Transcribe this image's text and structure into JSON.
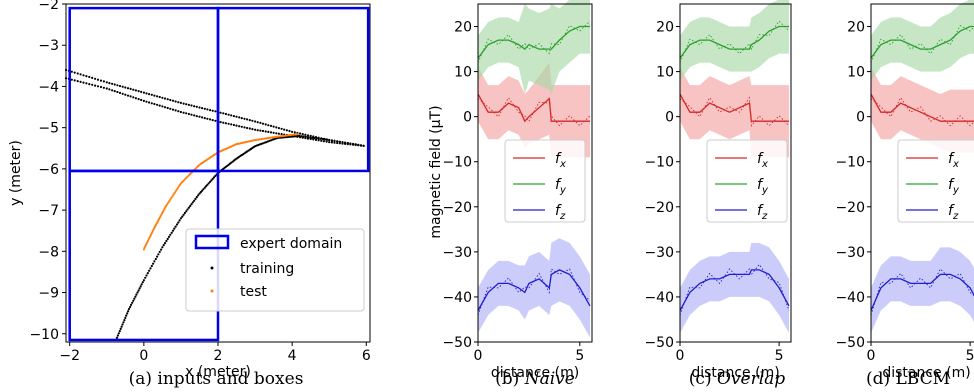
{
  "chart_data": [
    {
      "type": "scatter",
      "xlabel": "x (meter)",
      "ylabel": "y (meter)",
      "xlim": [
        -2.1,
        6.1
      ],
      "ylim": [
        -10.2,
        -2.0
      ],
      "xticks": [
        -2,
        0,
        2,
        4,
        6
      ],
      "yticks": [
        -10,
        -9,
        -8,
        -7,
        -6,
        -5,
        -4,
        -3,
        -2
      ],
      "boxes": [
        {
          "x0": -2.0,
          "x1": 2.0,
          "y0": -6.05,
          "y1": -2.1
        },
        {
          "x0": 2.0,
          "x1": 6.05,
          "y0": -6.05,
          "y1": -2.1
        },
        {
          "x0": -2.0,
          "x1": 2.0,
          "y0": -10.15,
          "y1": -6.05
        }
      ],
      "series": [
        {
          "name": "training",
          "color": "#000000",
          "kind": "scatter",
          "points": [
            [
              -2.1,
              -3.6
            ],
            [
              -1,
              -3.9
            ],
            [
              0,
              -4.15
            ],
            [
              1,
              -4.4
            ],
            [
              2,
              -4.62
            ],
            [
              3,
              -4.85
            ],
            [
              4,
              -5.1
            ],
            [
              5,
              -5.3
            ],
            [
              6,
              -5.45
            ]
          ]
        },
        {
          "color": "#000000",
          "kind": "scatter",
          "points": [
            [
              -2.1,
              -3.8
            ],
            [
              -1,
              -4.05
            ],
            [
              0,
              -4.35
            ],
            [
              1,
              -4.62
            ],
            [
              2,
              -4.85
            ],
            [
              3,
              -5.05
            ],
            [
              4,
              -5.2
            ],
            [
              5,
              -5.35
            ],
            [
              6,
              -5.45
            ]
          ]
        },
        {
          "color": "#000000",
          "kind": "scatter",
          "points": [
            [
              -0.75,
              -10.15
            ],
            [
              -0.4,
              -9.4
            ],
            [
              0,
              -8.7
            ],
            [
              0.5,
              -7.9
            ],
            [
              1,
              -7.2
            ],
            [
              1.5,
              -6.6
            ],
            [
              2,
              -6.1
            ],
            [
              2.5,
              -5.75
            ],
            [
              3,
              -5.45
            ],
            [
              3.6,
              -5.25
            ],
            [
              4.2,
              -5.2
            ],
            [
              5,
              -5.3
            ],
            [
              6,
              -5.45
            ]
          ]
        },
        {
          "name": "test",
          "color": "#ff7f0e",
          "kind": "scatter",
          "points": [
            [
              0,
              -7.95
            ],
            [
              0.3,
              -7.4
            ],
            [
              0.6,
              -6.9
            ],
            [
              1,
              -6.35
            ],
            [
              1.5,
              -5.9
            ],
            [
              2,
              -5.6
            ],
            [
              2.5,
              -5.4
            ],
            [
              3,
              -5.3
            ],
            [
              3.6,
              -5.22
            ],
            [
              4.2,
              -5.15
            ]
          ]
        }
      ],
      "legend": {
        "position": "bottom-right",
        "entries": [
          "expert domain",
          "training",
          "test"
        ]
      },
      "caption": "(a) inputs and boxes"
    },
    {
      "type": "line",
      "xlabel": "distance (m)",
      "ylabel": "magnetic field (μT)",
      "xlim": [
        0,
        5.6
      ],
      "ylim": [
        -50,
        25
      ],
      "xticks": [
        0,
        5
      ],
      "yticks": [
        -50,
        -40,
        -30,
        -20,
        -10,
        0,
        10,
        20
      ],
      "legend": {
        "position": "center",
        "entries": [
          "f_x",
          "f_y",
          "f_z"
        ]
      },
      "caption_prefix": "(b) ",
      "caption_emph": "Naive",
      "series": [
        {
          "name": "f_x",
          "color": "#d62728",
          "fill": "#f4a3a3",
          "x": [
            0,
            0.5,
            1,
            1.5,
            2,
            2.3,
            2.5,
            3,
            3.5,
            3.6,
            4,
            4.5,
            5,
            5.5
          ],
          "values": [
            5,
            1,
            1,
            3,
            2,
            -1,
            0,
            2,
            4,
            -1,
            -1,
            -1,
            -1,
            -1
          ],
          "band": [
            6,
            6,
            6,
            6,
            6,
            6,
            6,
            7,
            8,
            8,
            8,
            8,
            8,
            8
          ]
        },
        {
          "name": "f_y",
          "color": "#2ca02c",
          "fill": "#a7d8a7",
          "x": [
            0,
            0.5,
            1,
            1.5,
            2,
            2.3,
            2.5,
            3,
            3.5,
            3.6,
            4,
            4.5,
            5,
            5.5
          ],
          "values": [
            13,
            16,
            17,
            17,
            16,
            15,
            16,
            15,
            15,
            15,
            17,
            19,
            20,
            20
          ],
          "band": [
            5,
            5,
            5,
            5,
            5,
            10,
            8,
            8,
            9,
            10,
            7,
            7,
            6,
            6
          ]
        },
        {
          "name": "f_z",
          "color": "#1f1fd0",
          "fill": "#b0b0f8",
          "x": [
            0,
            0.5,
            1,
            1.5,
            2,
            2.3,
            2.5,
            3,
            3.5,
            3.6,
            4,
            4.5,
            5,
            5.5
          ],
          "values": [
            -43,
            -39,
            -37,
            -37,
            -38,
            -39,
            -37,
            -36,
            -38,
            -35,
            -34,
            -35,
            -38,
            -42
          ],
          "band": [
            5,
            5,
            5,
            5,
            5,
            6,
            6,
            6,
            6,
            7,
            7,
            7,
            7,
            7
          ]
        }
      ]
    },
    {
      "type": "line",
      "xlim": [
        0,
        5.6
      ],
      "ylim": [
        -50,
        25
      ],
      "xlabel": "distance (m)",
      "xticks": [
        0,
        5
      ],
      "yticks": [
        -50,
        -40,
        -30,
        -20,
        -10,
        0,
        10,
        20
      ],
      "legend": {
        "position": "center",
        "entries": [
          "f_x",
          "f_y",
          "f_z"
        ]
      },
      "caption_prefix": "(c) ",
      "caption_emph": "Overlap",
      "series": [
        {
          "name": "f_x",
          "color": "#d62728",
          "fill": "#f4a3a3",
          "x": [
            0,
            0.5,
            1,
            1.5,
            2,
            2.5,
            3,
            3.5,
            3.6,
            4,
            4.5,
            5,
            5.5
          ],
          "values": [
            5,
            1,
            1,
            3,
            2,
            1,
            2,
            3,
            -1,
            -1,
            -1,
            -1,
            -1
          ],
          "band": [
            6,
            6,
            6,
            6,
            6,
            6,
            6,
            6,
            8,
            8,
            8,
            8,
            8
          ]
        },
        {
          "name": "f_y",
          "color": "#2ca02c",
          "fill": "#a7d8a7",
          "x": [
            0,
            0.5,
            1,
            1.5,
            2,
            2.5,
            3,
            3.5,
            3.6,
            4,
            4.5,
            5,
            5.5
          ],
          "values": [
            13,
            16,
            17,
            17,
            16,
            15,
            15,
            15,
            16,
            17,
            19,
            20,
            20
          ],
          "band": [
            5,
            5,
            5,
            5,
            5,
            5,
            5,
            5,
            6,
            6,
            6,
            6,
            6
          ]
        },
        {
          "name": "f_z",
          "color": "#1f1fd0",
          "fill": "#b0b0f8",
          "x": [
            0,
            0.5,
            1,
            1.5,
            2,
            2.5,
            3,
            3.5,
            3.6,
            4,
            4.5,
            5,
            5.5
          ],
          "values": [
            -43,
            -39,
            -37,
            -36,
            -36,
            -35,
            -35,
            -35,
            -34,
            -34,
            -35,
            -38,
            -42
          ],
          "band": [
            5,
            5,
            5,
            5,
            5,
            5,
            5,
            5,
            6,
            6,
            6,
            6,
            6
          ]
        }
      ]
    },
    {
      "type": "line",
      "xlim": [
        0,
        5.6
      ],
      "ylim": [
        -50,
        25
      ],
      "xlabel": "distance (m)",
      "xticks": [
        0,
        5
      ],
      "yticks": [
        -50,
        -40,
        -30,
        -20,
        -10,
        0,
        10,
        20
      ],
      "legend": {
        "position": "center",
        "entries": [
          "f_x",
          "f_y",
          "f_z"
        ]
      },
      "caption": "(d) LBCM",
      "series": [
        {
          "name": "f_x",
          "color": "#d62728",
          "fill": "#f4a3a3",
          "x": [
            0,
            0.5,
            1,
            1.5,
            2,
            2.5,
            3,
            3.5,
            4,
            4.5,
            5,
            5.5
          ],
          "values": [
            5,
            1,
            1,
            3,
            2,
            1,
            0,
            -1,
            -1,
            -1,
            -1,
            -1
          ],
          "band": [
            6,
            6,
            6,
            6,
            6,
            6,
            6,
            6,
            7,
            7,
            7,
            7
          ]
        },
        {
          "name": "f_y",
          "color": "#2ca02c",
          "fill": "#a7d8a7",
          "x": [
            0,
            0.5,
            1,
            1.5,
            2,
            2.5,
            3,
            3.5,
            4,
            4.5,
            5,
            5.5
          ],
          "values": [
            13,
            16,
            17,
            17,
            16,
            15,
            15,
            16,
            17,
            19,
            20,
            20
          ],
          "band": [
            5,
            5,
            5,
            5,
            5,
            5,
            5,
            6,
            6,
            6,
            6,
            6
          ]
        },
        {
          "name": "f_z",
          "color": "#1f1fd0",
          "fill": "#b0b0f8",
          "x": [
            0,
            0.5,
            1,
            1.5,
            2,
            2.5,
            3,
            3.5,
            4,
            4.5,
            5,
            5.5
          ],
          "values": [
            -43,
            -38,
            -36,
            -36,
            -37,
            -37,
            -37,
            -35,
            -35,
            -36,
            -38,
            -42
          ],
          "band": [
            5,
            5,
            5,
            5,
            5,
            5,
            5,
            6,
            6,
            6,
            6,
            6
          ]
        }
      ]
    }
  ]
}
